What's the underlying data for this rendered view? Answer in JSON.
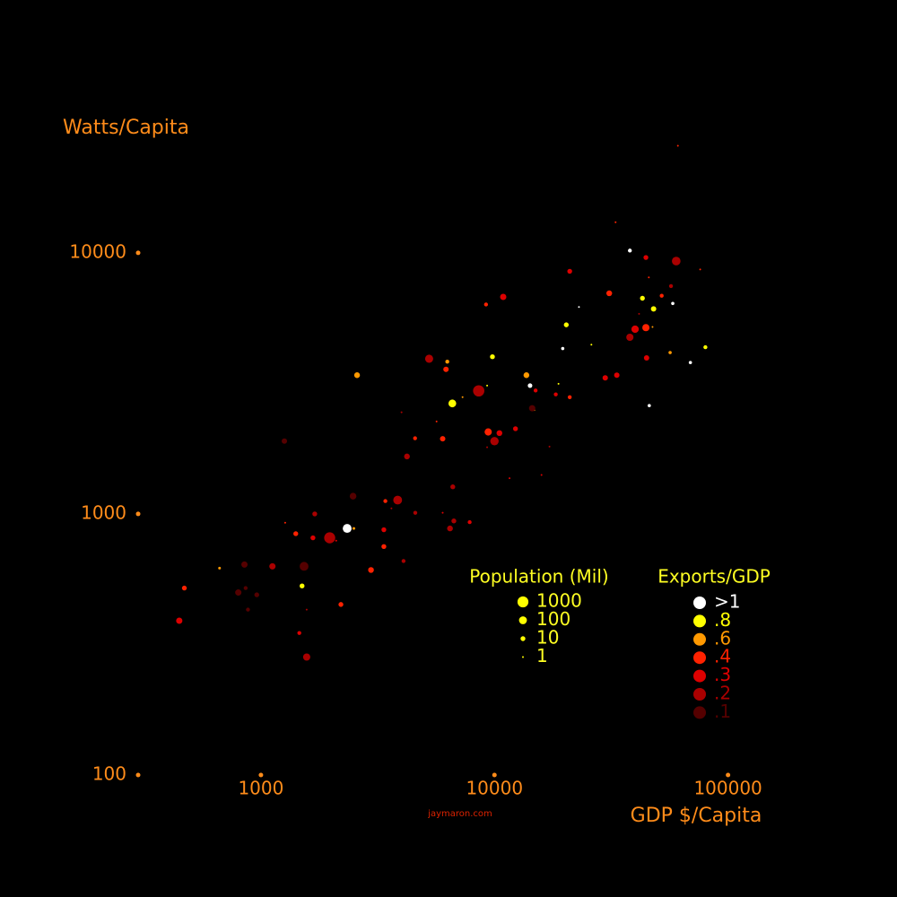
{
  "chart_data": {
    "type": "bubble",
    "y_label": "Watts/Capita",
    "x_label": "GDP $/Capita",
    "credit": "jaymaron.com",
    "log_x": true,
    "log_y": true,
    "xlim": [
      298,
      200000
    ],
    "ylim": [
      100,
      30000
    ],
    "xticks": [
      1000,
      10000,
      100000
    ],
    "yticks": [
      100,
      1000,
      10000
    ],
    "size_legend": {
      "title": "Population (Mil)",
      "values": [
        1000,
        100,
        10,
        1
      ]
    },
    "color_legend_title": "Exports/GDP",
    "series": [
      {
        "name": ">1",
        "color": "#ffffff",
        "x": [
          38000,
          58000,
          46000,
          69000,
          19600,
          14200,
          2340,
          23000
        ],
        "values": [
          10200,
          6400,
          2600,
          3800,
          4300,
          3100,
          880,
          6200
        ],
        "sizes": [
          5,
          3,
          3,
          3,
          3,
          8,
          200,
          1
        ]
      },
      {
        "name": ".8",
        "color": "#ffff00",
        "x": [
          6600,
          9800,
          20300,
          43000,
          48000,
          80000,
          26000,
          18800,
          9300,
          1500
        ],
        "values": [
          2650,
          4000,
          5300,
          6700,
          6100,
          4350,
          4450,
          3150,
          3100,
          530
        ],
        "sizes": [
          90,
          10,
          10,
          10,
          15,
          5,
          1,
          1,
          1,
          10
        ]
      },
      {
        "name": ".6",
        "color": "#ff9900",
        "x": [
          2580,
          13700,
          6280,
          7300,
          14800,
          56500,
          47500,
          2500,
          665
        ],
        "values": [
          3400,
          3400,
          3830,
          2800,
          2500,
          4150,
          5200,
          880,
          620
        ],
        "sizes": [
          20,
          20,
          5,
          1,
          1,
          3,
          1,
          2,
          2
        ]
      },
      {
        "name": ".4",
        "color": "#ff2200",
        "x": [
          9400,
          44500,
          6200,
          31000,
          33000,
          61000,
          2960,
          3360,
          470,
          2200,
          1410,
          52000,
          45800,
          21000,
          1270,
          3410,
          4570,
          76000,
          6000,
          9200,
          5650
        ],
        "values": [
          2060,
          5170,
          3580,
          7000,
          13100,
          25700,
          610,
          750,
          520,
          450,
          840,
          6850,
          8050,
          2800,
          925,
          1120,
          1950,
          8640,
          1940,
          6340,
          2260
        ],
        "sizes": [
          60,
          60,
          15,
          20,
          1,
          1,
          20,
          10,
          10,
          10,
          10,
          5,
          1,
          5,
          1,
          5,
          5,
          1,
          15,
          5,
          1
        ]
      },
      {
        "name": ".3",
        "color": "#dd0000",
        "x": [
          10900,
          40000,
          44500,
          21000,
          10500,
          12300,
          29800,
          33400,
          44800,
          15000,
          1670,
          447,
          3360,
          18300,
          2100,
          11600,
          15900,
          7830,
          6000,
          1460
        ],
        "values": [
          6780,
          5100,
          9600,
          8500,
          2040,
          2120,
          3320,
          3400,
          3960,
          2970,
          810,
          390,
          870,
          2870,
          790,
          1370,
          1410,
          930,
          1010,
          350
        ],
        "sizes": [
          30,
          70,
          10,
          10,
          20,
          10,
          15,
          15,
          15,
          5,
          10,
          30,
          10,
          5,
          1,
          1,
          1,
          5,
          1,
          5
        ]
      },
      {
        "name": ".2",
        "color": "#aa0000",
        "x": [
          8560,
          5250,
          10000,
          38000,
          1970,
          4220,
          6630,
          1570,
          6700,
          6450,
          4580,
          4080,
          3620,
          3850,
          1700,
          57000,
          41600,
          1570,
          17200,
          9300,
          4000,
          60000,
          1120
        ],
        "values": [
          2960,
          3930,
          1900,
          4750,
          810,
          1660,
          1270,
          283,
          940,
          880,
          1010,
          660,
          1050,
          1130,
          1000,
          7460,
          5840,
          430,
          1810,
          1800,
          2450,
          9300,
          630
        ],
        "sizes": [
          1300,
          120,
          150,
          60,
          1100,
          20,
          10,
          60,
          10,
          20,
          5,
          5,
          1,
          200,
          10,
          5,
          1,
          1,
          1,
          1,
          1,
          180,
          30
        ]
      },
      {
        "name": ".1",
        "color": "#550000",
        "x": [
          1530,
          850,
          800,
          960,
          860,
          880,
          14500,
          2480,
          1260
        ],
        "values": [
          630,
          640,
          500,
          490,
          520,
          430,
          2540,
          1170,
          1900
        ],
        "sizes": [
          200,
          30,
          30,
          10,
          5,
          5,
          30,
          40,
          15
        ]
      }
    ]
  }
}
